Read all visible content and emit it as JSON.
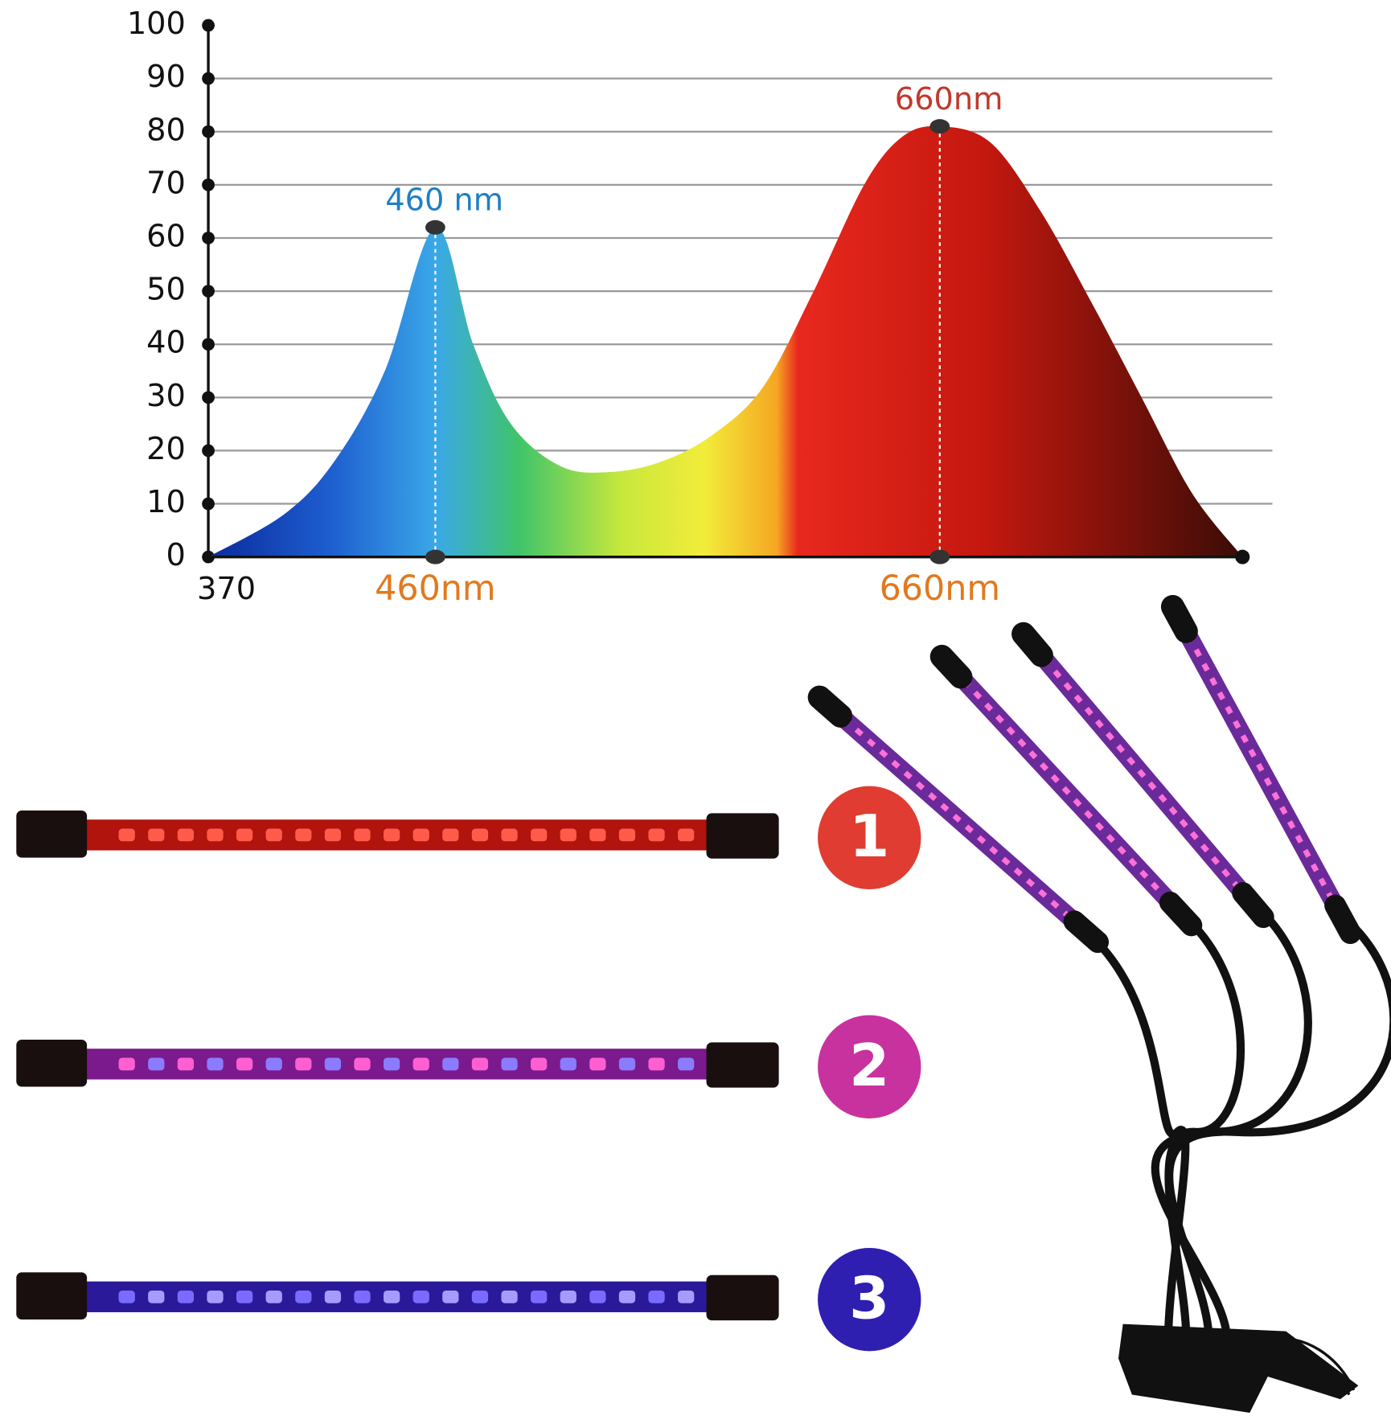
{
  "chart_data": {
    "type": "area",
    "x": [
      370,
      400,
      420,
      440,
      460,
      475,
      490,
      510,
      530,
      550,
      570,
      590,
      610,
      630,
      645,
      660,
      680,
      700,
      720,
      740,
      760,
      780
    ],
    "values": [
      0,
      8,
      18,
      35,
      62,
      40,
      25,
      17,
      16,
      18,
      23,
      32,
      50,
      70,
      79,
      81,
      78,
      65,
      48,
      30,
      12,
      0
    ],
    "xlim": [
      370,
      780
    ],
    "xticks": [
      370,
      {
        "value": 460,
        "label": "460nm"
      },
      {
        "value": 660,
        "label": "660nm"
      }
    ],
    "ylim": [
      0,
      100
    ],
    "yticks": [
      0,
      10,
      20,
      30,
      40,
      50,
      60,
      70,
      80,
      90,
      100
    ],
    "grid": true,
    "annotations": [
      {
        "x": 460,
        "y": 62,
        "text": "460 nm",
        "color": "#1f7fc4"
      },
      {
        "x": 660,
        "y": 81,
        "text": "660nm",
        "color": "#c0392b"
      }
    ]
  },
  "badges": [
    {
      "label": "1",
      "color": "#e03c31"
    },
    {
      "label": "2",
      "color": "#c8329e"
    },
    {
      "label": "3",
      "color": "#2e1fb0"
    }
  ]
}
